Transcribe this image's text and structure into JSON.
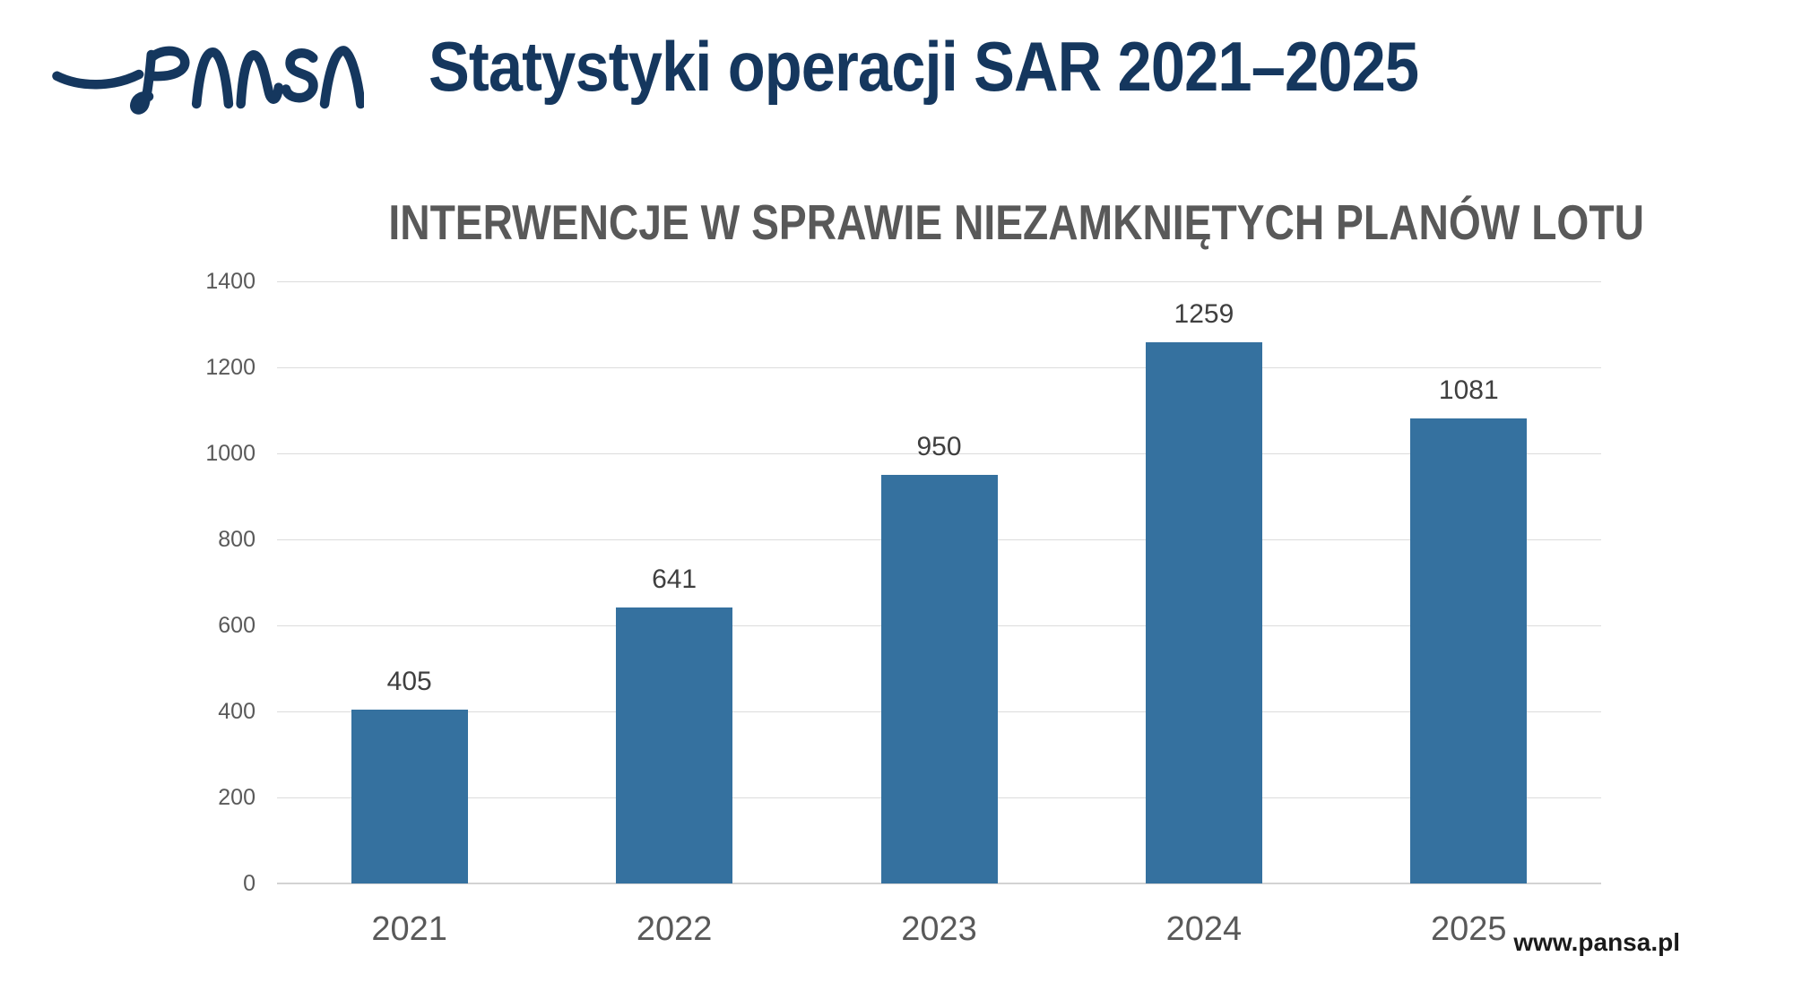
{
  "header": {
    "logo": "PANSA",
    "title": "Statystyki operacji SAR 2021–2025"
  },
  "chart_data": {
    "type": "bar",
    "title": "INTERWENCJE W SPRAWIE NIEZAMKNIĘTYCH PLANÓW LOTU",
    "categories": [
      "2021",
      "2022",
      "2023",
      "2024",
      "2025"
    ],
    "values": [
      405,
      641,
      950,
      1259,
      1081
    ],
    "data_labels": true,
    "xlabel": "",
    "ylabel": "",
    "ylim": [
      0,
      1400
    ],
    "ytick_step": 200,
    "yticks": [
      0,
      200,
      400,
      600,
      800,
      1000,
      1200,
      1400
    ],
    "grid": true,
    "legend": false,
    "bar_color": "#35719f"
  },
  "footer": {
    "website": "www.pansa.pl"
  },
  "colors": {
    "brand_navy": "#15375e",
    "bar_blue": "#35719f",
    "gridline": "#dcdcdc",
    "axis_line": "#d3d3d3",
    "tick_label": "#595959",
    "value_label": "#3f3f3f",
    "chart_title": "#595959",
    "footer_text": "#1a1a1a",
    "background": "#ffffff"
  }
}
